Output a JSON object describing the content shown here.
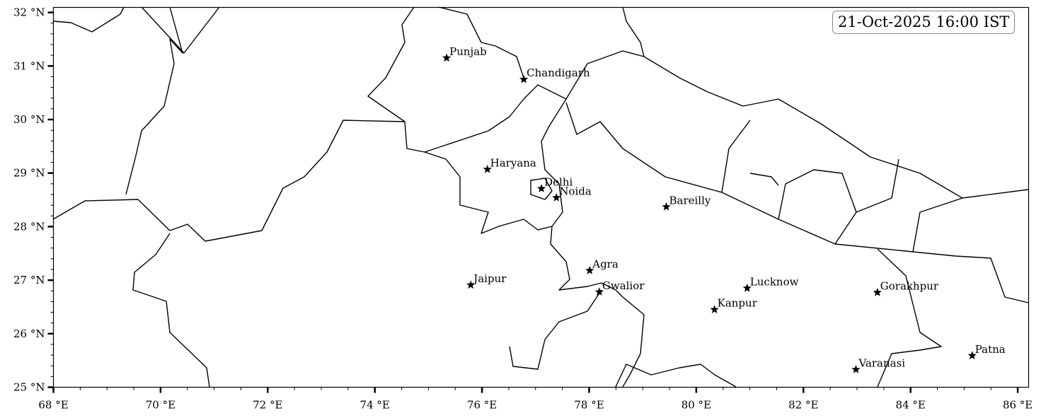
{
  "timestamp": "21-Oct-2025 16:00 IST",
  "map": {
    "lon_range": [
      68,
      86.2
    ],
    "lat_range": [
      25,
      32.1
    ],
    "lon_ticks": [
      {
        "value": 68,
        "label": "68 °E"
      },
      {
        "value": 70,
        "label": "70 °E"
      },
      {
        "value": 72,
        "label": "72 °E"
      },
      {
        "value": 74,
        "label": "74 °E"
      },
      {
        "value": 76,
        "label": "76 °E"
      },
      {
        "value": 78,
        "label": "78 °E"
      },
      {
        "value": 80,
        "label": "80 °E"
      },
      {
        "value": 82,
        "label": "82 °E"
      },
      {
        "value": 84,
        "label": "84 °E"
      },
      {
        "value": 86,
        "label": "86 °E"
      }
    ],
    "lat_ticks": [
      {
        "value": 25,
        "label": "25 °N"
      },
      {
        "value": 26,
        "label": "26 °N"
      },
      {
        "value": 27,
        "label": "27 °N"
      },
      {
        "value": 28,
        "label": "28 °N"
      },
      {
        "value": 29,
        "label": "29 °N"
      },
      {
        "value": 30,
        "label": "30 °N"
      },
      {
        "value": 31,
        "label": "31 °N"
      },
      {
        "value": 32,
        "label": "32 °N"
      }
    ],
    "marker_icon": "star-icon",
    "marker_color": "#000000",
    "cities": [
      {
        "name": "Punjab",
        "lon": 75.34,
        "lat": 31.15
      },
      {
        "name": "Chandigarh",
        "lon": 76.78,
        "lat": 30.75
      },
      {
        "name": "Haryana",
        "lon": 76.1,
        "lat": 29.07
      },
      {
        "name": "Delhi",
        "lon": 77.11,
        "lat": 28.71
      },
      {
        "name": "Noida",
        "lon": 77.39,
        "lat": 28.54
      },
      {
        "name": "Bareilly",
        "lon": 79.44,
        "lat": 28.37
      },
      {
        "name": "Agra",
        "lon": 78.01,
        "lat": 27.18
      },
      {
        "name": "Jaipur",
        "lon": 75.79,
        "lat": 26.91
      },
      {
        "name": "Gwalior",
        "lon": 78.19,
        "lat": 26.78
      },
      {
        "name": "Lucknow",
        "lon": 80.95,
        "lat": 26.85
      },
      {
        "name": "Kanpur",
        "lon": 80.34,
        "lat": 26.45
      },
      {
        "name": "Gorakhpur",
        "lon": 83.38,
        "lat": 26.77
      },
      {
        "name": "Varanasi",
        "lon": 82.98,
        "lat": 25.33
      },
      {
        "name": "Patna",
        "lon": 85.15,
        "lat": 25.59
      }
    ]
  }
}
